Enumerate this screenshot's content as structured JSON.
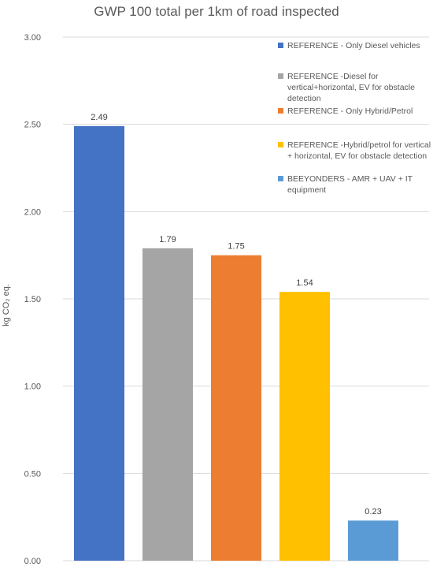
{
  "chart_data": {
    "type": "bar",
    "title": "GWP 100 total per 1km of road inspected",
    "xlabel": "",
    "ylabel": "kg CO₂ eq.",
    "ylim": [
      0,
      3
    ],
    "yticks": [
      "0.00",
      "0.50",
      "1.00",
      "1.50",
      "2.00",
      "2.50",
      "3.00"
    ],
    "grid": true,
    "legend_position": "right",
    "series": [
      {
        "name": "REFERENCE - Only Diesel vehicles",
        "value": 2.49,
        "label": "2.49",
        "color": "#4472C4",
        "legend_lines": [
          "REFERENCE - Only Diesel vehicles"
        ]
      },
      {
        "name": "REFERENCE -Diesel for vertical+horizontal, EV for obstacle detection",
        "value": 1.79,
        "label": "1.79",
        "color": "#A5A5A5",
        "legend_lines": [
          "REFERENCE -Diesel for",
          "vertical+horizontal, EV for obstacle",
          "detection"
        ]
      },
      {
        "name": "REFERENCE - Only Hybrid/Petrol",
        "value": 1.75,
        "label": "1.75",
        "color": "#ED7D31",
        "legend_lines": [
          "REFERENCE - Only Hybrid/Petrol"
        ]
      },
      {
        "name": "REFERENCE -Hybrid/petrol for vertical + horizontal, EV for obstacle detection",
        "value": 1.54,
        "label": "1.54",
        "color": "#FFC000",
        "legend_lines": [
          "REFERENCE -Hybrid/petrol for vertical",
          "+ horizontal, EV for obstacle detection"
        ]
      },
      {
        "name": "BEEYONDERS - AMR + UAV + IT equipment",
        "value": 0.23,
        "label": "0.23",
        "color": "#5B9BD5",
        "legend_lines": [
          "BEEYONDERS - AMR + UAV + IT",
          "equipment"
        ]
      }
    ]
  }
}
